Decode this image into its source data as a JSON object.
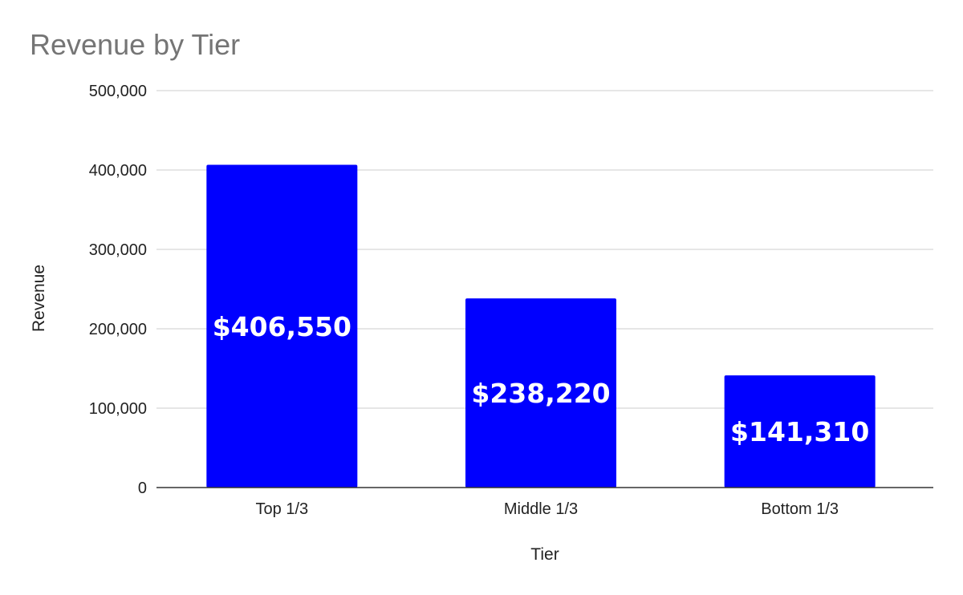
{
  "chart_data": {
    "type": "bar",
    "title": "Revenue by Tier",
    "xlabel": "Tier",
    "ylabel": "Revenue",
    "categories": [
      "Top 1/3",
      "Middle 1/3",
      "Bottom 1/3"
    ],
    "values": [
      406550,
      238220,
      141310
    ],
    "data_labels": [
      "$406,550",
      "$238,220",
      "$141,310"
    ],
    "ylim": [
      0,
      500000
    ],
    "yticks": [
      0,
      100000,
      200000,
      300000,
      400000,
      500000
    ],
    "ytick_labels": [
      "0",
      "100,000",
      "200,000",
      "300,000",
      "400,000",
      "500,000"
    ],
    "grid": true,
    "legend": "none",
    "bar_color": "#0000ff"
  }
}
